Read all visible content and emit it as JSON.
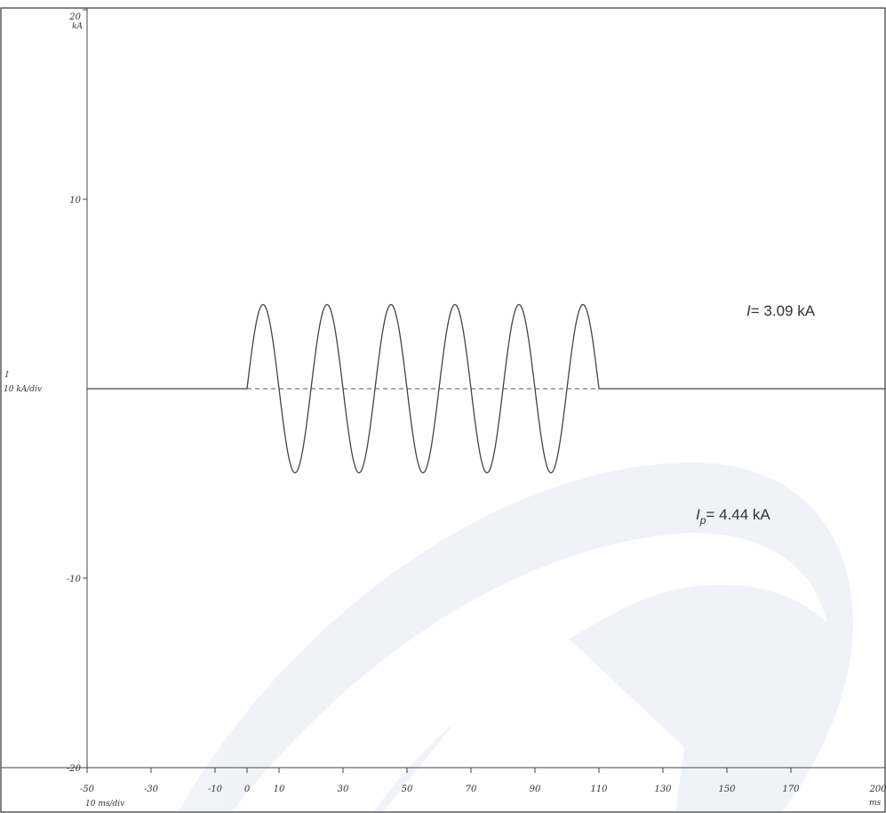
{
  "chart_data": {
    "type": "line",
    "title": "",
    "x_ticks": [
      -50,
      -30,
      -10,
      0,
      10,
      30,
      50,
      70,
      90,
      110,
      130,
      150,
      170,
      200
    ],
    "y_ticks": [
      20,
      10,
      -10,
      -20
    ],
    "xlim": [
      -50,
      200
    ],
    "ylim": [
      -20,
      20
    ],
    "grid": false,
    "y_axis_symbol": "I",
    "y_unit": "kA",
    "y_scale_label": "10 kA/div",
    "x_unit": "ms",
    "x_scale_label": "10 ms/div",
    "series": [
      {
        "style": "solid",
        "waveform": "sine",
        "amplitude_kA": 4.44,
        "frequency_hz": 50,
        "start_ms": 0,
        "end_ms": 110
      }
    ],
    "zero_reference": {
      "style": "dashed",
      "y": 0,
      "x_range": [
        0,
        110
      ]
    },
    "annotations": [
      {
        "symbol": "I",
        "subscript": "",
        "text": "= 3.09 kA"
      },
      {
        "symbol": "I",
        "subscript": "p",
        "text": "= 4.44 kA"
      }
    ],
    "colors": {
      "trace": "#444444",
      "axis": "#444444",
      "frame": "#333333",
      "watermark": "#e6ecf6"
    }
  }
}
